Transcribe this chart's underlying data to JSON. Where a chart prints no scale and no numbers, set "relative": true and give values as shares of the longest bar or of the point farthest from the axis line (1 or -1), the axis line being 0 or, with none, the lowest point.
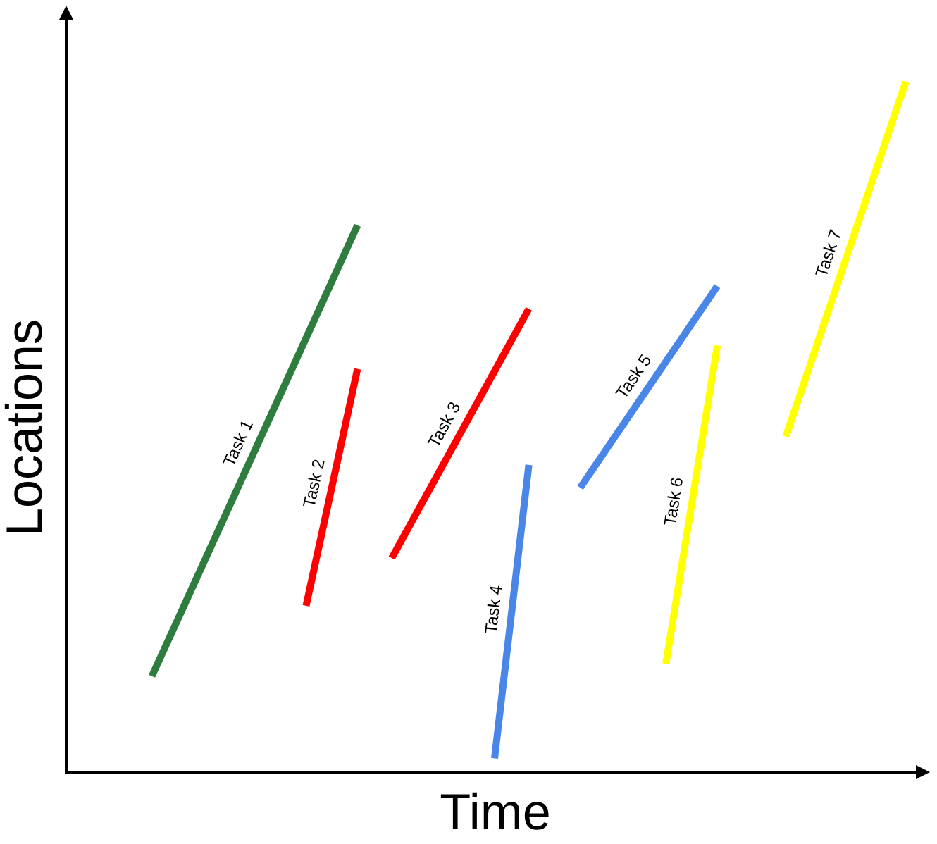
{
  "chart_data": {
    "type": "line",
    "xlabel": "Time",
    "ylabel": "Locations",
    "relative": true,
    "categories": [
      null,
      null,
      null,
      null,
      null,
      null,
      null,
      null,
      null,
      null,
      null,
      null,
      null,
      null,
      null,
      null,
      null,
      null,
      null,
      null,
      null,
      null,
      null,
      null,
      null,
      null,
      null,
      null,
      null,
      null,
      null,
      null,
      null,
      null,
      null,
      null,
      null,
      null,
      null,
      null,
      null,
      null,
      null,
      null,
      null,
      null,
      null,
      null,
      null,
      null,
      null
    ],
    "series": [
      {
        "name": "Task 1",
        "color": "#2e7d3e",
        "values": [
          null,
          null,
          null,
          null,
          null,
          0.139,
          null,
          null,
          null,
          null,
          null,
          null,
          null,
          null,
          null,
          null,
          null,
          0.792,
          null,
          null,
          null,
          null,
          null,
          null,
          null,
          null,
          null,
          null,
          null,
          null,
          null,
          null,
          null,
          null,
          null,
          null,
          null,
          null,
          null,
          null,
          null,
          null,
          null,
          null,
          null,
          null,
          null,
          null,
          null,
          null,
          null
        ]
      },
      {
        "name": "Task 2",
        "color": "#ff0000",
        "values": [
          null,
          null,
          null,
          null,
          null,
          null,
          null,
          null,
          null,
          null,
          null,
          null,
          null,
          null,
          0.241,
          null,
          null,
          0.584,
          null,
          null,
          null,
          null,
          null,
          null,
          null,
          null,
          null,
          null,
          null,
          null,
          null,
          null,
          null,
          null,
          null,
          null,
          null,
          null,
          null,
          null,
          null,
          null,
          null,
          null,
          null,
          null,
          null,
          null,
          null,
          null,
          null
        ]
      },
      {
        "name": "Task 3",
        "color": "#ff0000",
        "values": [
          null,
          null,
          null,
          null,
          null,
          null,
          null,
          null,
          null,
          null,
          null,
          null,
          null,
          null,
          null,
          null,
          null,
          null,
          null,
          0.31,
          null,
          null,
          null,
          null,
          null,
          null,
          null,
          0.671,
          null,
          null,
          null,
          null,
          null,
          null,
          null,
          null,
          null,
          null,
          null,
          null,
          null,
          null,
          null,
          null,
          null,
          null,
          null,
          null,
          null,
          null,
          null
        ]
      },
      {
        "name": "Task 4",
        "color": "#4a86e8",
        "values": [
          null,
          null,
          null,
          null,
          null,
          null,
          null,
          null,
          null,
          null,
          null,
          null,
          null,
          null,
          null,
          null,
          null,
          null,
          null,
          null,
          null,
          null,
          null,
          null,
          null,
          0.02,
          null,
          0.445,
          null,
          null,
          null,
          null,
          null,
          null,
          null,
          null,
          null,
          null,
          null,
          null,
          null,
          null,
          null,
          null,
          null,
          null,
          null,
          null,
          null,
          null,
          null
        ]
      },
      {
        "name": "Task 5",
        "color": "#4a86e8",
        "values": [
          null,
          null,
          null,
          null,
          null,
          null,
          null,
          null,
          null,
          null,
          null,
          null,
          null,
          null,
          null,
          null,
          null,
          null,
          null,
          null,
          null,
          null,
          null,
          null,
          null,
          null,
          null,
          null,
          null,
          null,
          0.412,
          null,
          null,
          null,
          null,
          null,
          null,
          null,
          0.704,
          null,
          null,
          null,
          null,
          null,
          null,
          null,
          null,
          null,
          null,
          null,
          null
        ]
      },
      {
        "name": "Task 6",
        "color": "#ffff00",
        "values": [
          null,
          null,
          null,
          null,
          null,
          null,
          null,
          null,
          null,
          null,
          null,
          null,
          null,
          null,
          null,
          null,
          null,
          null,
          null,
          null,
          null,
          null,
          null,
          null,
          null,
          null,
          null,
          null,
          null,
          null,
          null,
          null,
          null,
          null,
          null,
          0.157,
          null,
          null,
          0.618,
          null,
          null,
          null,
          null,
          null,
          null,
          null,
          null,
          null,
          null,
          null,
          null
        ]
      },
      {
        "name": "Task 7",
        "color": "#ffff00",
        "values": [
          null,
          null,
          null,
          null,
          null,
          null,
          null,
          null,
          null,
          null,
          null,
          null,
          null,
          null,
          null,
          null,
          null,
          null,
          null,
          null,
          null,
          null,
          null,
          null,
          null,
          null,
          null,
          null,
          null,
          null,
          null,
          null,
          null,
          null,
          null,
          null,
          null,
          null,
          null,
          null,
          null,
          null,
          0.486,
          null,
          null,
          null,
          null,
          null,
          null,
          1.0,
          null
        ]
      }
    ]
  }
}
